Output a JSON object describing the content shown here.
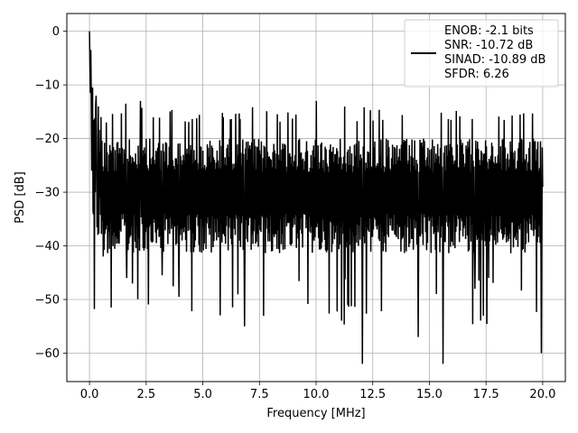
{
  "chart_data": {
    "type": "line",
    "title": "",
    "xlabel": "Frequency [MHz]",
    "ylabel": "PSD [dB]",
    "xlim": [
      -1.0,
      21.0
    ],
    "ylim": [
      -65.3,
      3.3
    ],
    "xticks": [
      0.0,
      2.5,
      5.0,
      7.5,
      10.0,
      12.5,
      15.0,
      17.5,
      20.0
    ],
    "xtick_labels": [
      "0.0",
      "2.5",
      "5.0",
      "7.5",
      "10.0",
      "12.5",
      "15.0",
      "17.5",
      "20.0"
    ],
    "yticks": [
      0,
      -10,
      -20,
      -30,
      -40,
      -50,
      -60
    ],
    "ytick_labels": [
      "0",
      "−10",
      "−20",
      "−30",
      "−40",
      "−50",
      "−60"
    ],
    "grid": true,
    "legend_position": "top-right",
    "series": [
      {
        "name": "ENOB: -2.1 bits\nSNR: -10.72 dB\nSINAD: -10.89 dB\nSFDR: 6.26",
        "color": "#000000",
        "x_range": [
          0.0,
          20.0
        ],
        "num_points": 1024,
        "noise_floor_db": -30,
        "noise_peak_range_db": [
          -27,
          -13
        ],
        "noise_trough_range_db": [
          -62,
          -34
        ],
        "points": [
          [
            0.0,
            0.0
          ],
          [
            0.02,
            -6.5
          ],
          [
            0.05,
            -3.5
          ],
          [
            0.08,
            -12.0
          ],
          [
            0.1,
            -26.0
          ],
          [
            0.13,
            -10.5
          ],
          [
            0.15,
            -33.5
          ],
          [
            0.2,
            -16.5
          ],
          [
            0.25,
            -30.0
          ],
          [
            0.3,
            -12.0
          ],
          [
            0.35,
            -26.0
          ],
          [
            0.4,
            -14.0
          ],
          [
            0.45,
            -31.0
          ],
          [
            0.5,
            -16.0
          ],
          [
            0.6,
            -42.0
          ],
          [
            0.75,
            -17.0
          ],
          [
            0.95,
            -51.5
          ],
          [
            1.6,
            -13.5
          ],
          [
            1.65,
            -46.0
          ],
          [
            2.25,
            -13.0
          ],
          [
            3.2,
            -45.5
          ],
          [
            3.95,
            -49.5
          ],
          [
            6.85,
            -55.0
          ],
          [
            10.0,
            -13.0
          ],
          [
            11.4,
            -51.0
          ],
          [
            12.05,
            -62.0
          ],
          [
            14.5,
            -57.0
          ],
          [
            15.6,
            -62.0
          ],
          [
            17.0,
            -48.0
          ],
          [
            19.95,
            -60.0
          ],
          [
            20.0,
            -29.0
          ]
        ]
      }
    ],
    "legend_entries": [
      "ENOB: -2.1 bits",
      "SNR: -10.72 dB",
      "SINAD: -10.89 dB",
      "SFDR: 6.26"
    ]
  }
}
